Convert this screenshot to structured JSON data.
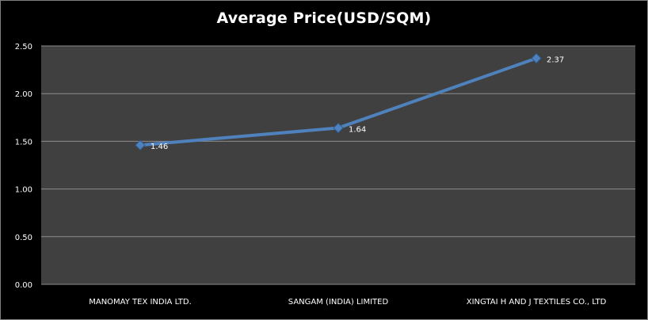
{
  "chart_data": {
    "type": "line",
    "title": "Average Price(USD/SQM)",
    "xlabel": "",
    "ylabel": "",
    "categories": [
      "MANOMAY TEX INDIA LTD.",
      "SANGAM (INDIA) LIMITED",
      "XINGTAI H AND J TEXTILES CO., LTD"
    ],
    "series": [
      {
        "values": [
          1.46,
          1.64,
          2.37
        ],
        "data_labels": [
          "1.46",
          "1.64",
          "2.37"
        ],
        "color": "#4f81bd"
      }
    ],
    "ylim": [
      0,
      2.5
    ],
    "yticks": [
      "0.00",
      "0.50",
      "1.00",
      "1.50",
      "2.00",
      "2.50"
    ],
    "grid": true,
    "legend": "none",
    "colors": {
      "background": "#000000",
      "plot_area": "#404040",
      "gridline": "#8c8c8c",
      "text": "#ffffff"
    },
    "marker": "diamond-icon"
  }
}
